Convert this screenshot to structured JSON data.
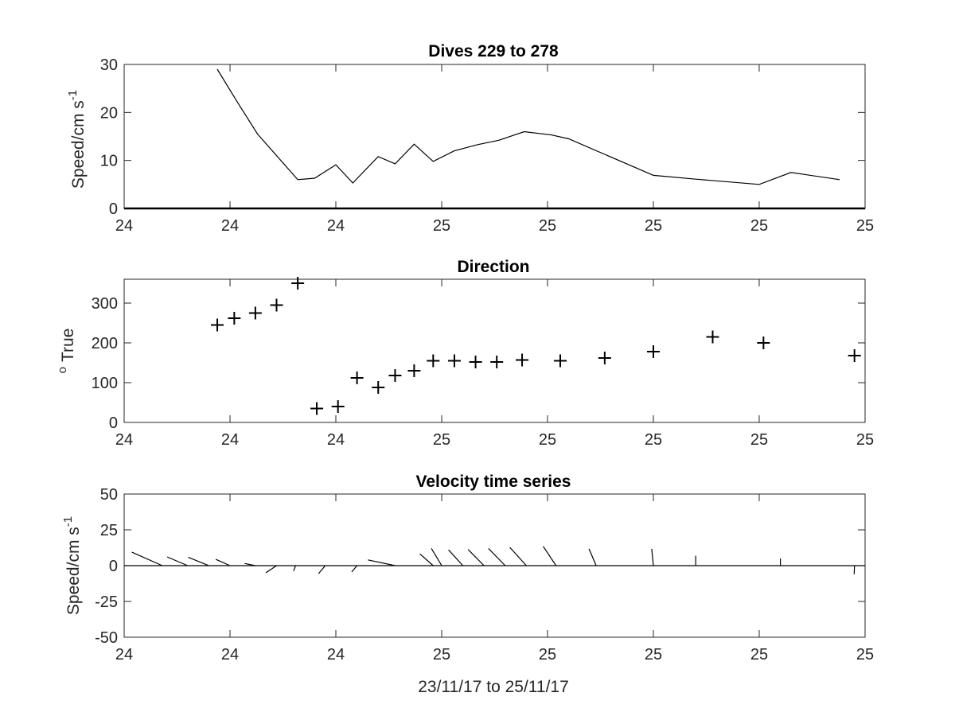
{
  "chart_data": [
    {
      "type": "line",
      "title": "Dives 229 to 278",
      "xlabel": "",
      "ylabel": "Speed/cm s",
      "ylabel_superscript": "-1",
      "ylim": [
        0,
        30
      ],
      "yticks": [
        0,
        10,
        20,
        30
      ],
      "xlim": [
        0,
        1
      ],
      "xtick_positions": [
        0,
        0.1429,
        0.2857,
        0.4286,
        0.5714,
        0.7143,
        0.8571,
        1
      ],
      "xtick_labels": [
        "24",
        "24",
        "24",
        "25",
        "25",
        "25",
        "25",
        "25"
      ],
      "zero_line": true,
      "series": [
        {
          "x": [
            0.1257,
            0.1514,
            0.18,
            0.2343,
            0.2571,
            0.2857,
            0.3086,
            0.3429,
            0.3657,
            0.3914,
            0.4171,
            0.4457,
            0.4771,
            0.5057,
            0.54,
            0.5771,
            0.6,
            0.7143,
            0.7714,
            0.8571,
            0.9,
            0.9657
          ],
          "values": [
            29.0,
            22.5,
            15.5,
            6.0,
            6.3,
            9.1,
            5.3,
            10.8,
            9.3,
            13.4,
            9.8,
            12.0,
            13.3,
            14.2,
            16.0,
            15.3,
            14.5,
            6.9,
            6.1,
            5.0,
            7.5,
            6.0
          ]
        }
      ]
    },
    {
      "type": "scatter",
      "title": "Direction",
      "xlabel": "",
      "ylabel": "True",
      "ylabel_prefix": "o",
      "ylim": [
        0,
        360
      ],
      "yticks": [
        0,
        100,
        200,
        300
      ],
      "xlim": [
        0,
        1
      ],
      "xtick_positions": [
        0,
        0.1429,
        0.2857,
        0.4286,
        0.5714,
        0.7143,
        0.8571,
        1
      ],
      "xtick_labels": [
        "24",
        "24",
        "24",
        "25",
        "25",
        "25",
        "25",
        "25"
      ],
      "marker": "+",
      "series": [
        {
          "x": [
            0.1257,
            0.1486,
            0.1771,
            0.2057,
            0.2343,
            0.26,
            0.2886,
            0.3143,
            0.3429,
            0.3657,
            0.3914,
            0.4171,
            0.4457,
            0.4743,
            0.5029,
            0.5371,
            0.5886,
            0.6486,
            0.7143,
            0.7943,
            0.8629,
            0.9857
          ],
          "values": [
            245,
            262,
            275,
            295,
            350,
            35,
            40,
            112,
            88,
            118,
            130,
            155,
            155,
            152,
            152,
            157,
            155,
            162,
            178,
            215,
            200,
            168
          ]
        }
      ]
    },
    {
      "type": "vector",
      "title": "Velocity time series",
      "xlabel": "23/11/17 to 25/11/17",
      "ylabel": "Speed/cm s",
      "ylabel_superscript": "-1",
      "ylim": [
        -50,
        50
      ],
      "yticks": [
        -50,
        -25,
        0,
        25,
        50
      ],
      "xlim": [
        0,
        1
      ],
      "xtick_positions": [
        0,
        0.1429,
        0.2857,
        0.4286,
        0.5714,
        0.7143,
        0.8571,
        1
      ],
      "xtick_labels": [
        "24",
        "24",
        "24",
        "25",
        "25",
        "25",
        "25",
        "25"
      ],
      "zero_line": true,
      "series": [
        {
          "x": [
            0.0514,
            0.0857,
            0.1143,
            0.1429,
            0.1771,
            0.2057,
            0.2314,
            0.2714,
            0.3143,
            0.3657,
            0.4171,
            0.4286,
            0.4571,
            0.4857,
            0.5143,
            0.5429,
            0.5829,
            0.6371,
            0.7143,
            0.7714,
            0.8857,
            0.9857
          ],
          "u": [
            21.2,
            14.3,
            14.4,
            9.9,
            7.5,
            7.5,
            1.4,
            4.7,
            3.7,
            18.9,
            9.3,
            7.2,
            10.0,
            11.1,
            11.7,
            11.6,
            9.0,
            5.0,
            1.2,
            0.0,
            0.0,
            0.2
          ],
          "v": [
            9.4,
            6.1,
            5.9,
            4.4,
            1.5,
            -5.0,
            -3.7,
            -5.6,
            -4.4,
            4.0,
            8.2,
            12.0,
            11.0,
            11.3,
            12.0,
            12.8,
            13.5,
            11.7,
            11.7,
            6.9,
            5.0,
            -6.0
          ]
        }
      ]
    }
  ]
}
